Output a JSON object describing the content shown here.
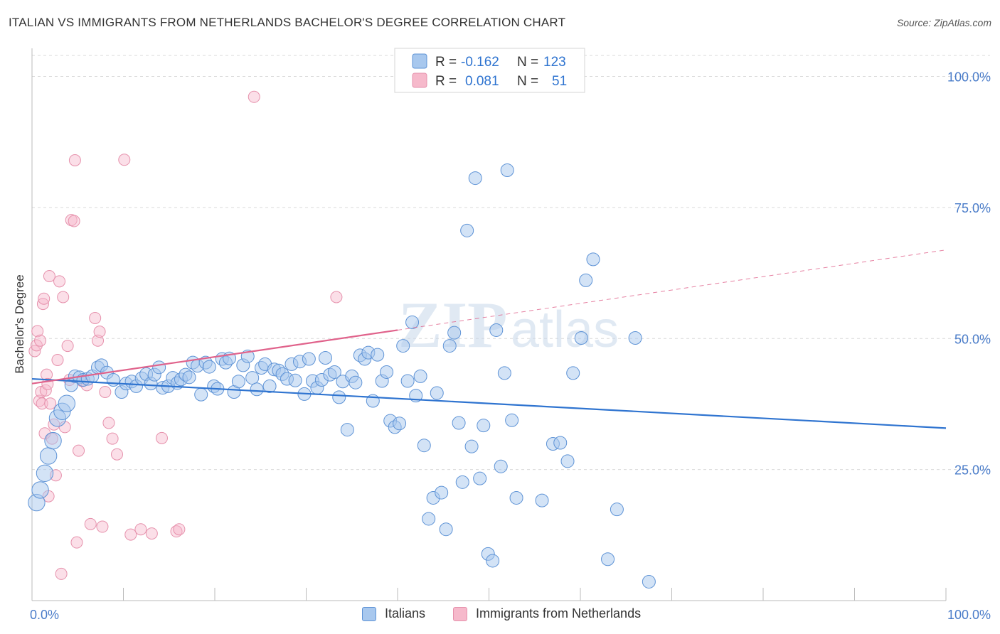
{
  "header": {
    "title": "ITALIAN VS IMMIGRANTS FROM NETHERLANDS BACHELOR'S DEGREE CORRELATION CHART",
    "source": "Source: ZipAtlas.com"
  },
  "watermark": {
    "zip": "ZIP",
    "atlas": "atlas"
  },
  "colors": {
    "blue_fill": "#a8c8ee",
    "blue_stroke": "#5e93d6",
    "blue_line": "#2f74d0",
    "pink_fill": "#f6b9cb",
    "pink_stroke": "#e691ac",
    "pink_line": "#e0628b",
    "axis_text": "#4a7cc9",
    "grid": "#d9d9d9"
  },
  "legend": {
    "rows": [
      {
        "r_label": "R =",
        "r_value": "-0.162",
        "n_label": "N =",
        "n_value": "123"
      },
      {
        "r_label": "R =",
        "r_value": "0.081",
        "n_label": "N =",
        "n_value": "51"
      }
    ],
    "bottom": [
      "Italians",
      "Immigrants from Netherlands"
    ]
  },
  "chart_data": {
    "type": "scatter",
    "title": "ITALIAN VS IMMIGRANTS FROM NETHERLANDS BACHELOR'S DEGREE CORRELATION CHART",
    "xlabel": "",
    "ylabel": "Bachelor's Degree",
    "xlim": [
      0,
      100
    ],
    "ylim": [
      0,
      104
    ],
    "x_tick_labels": [
      "0.0%",
      "100.0%"
    ],
    "y_tick_labels": [
      "25.0%",
      "50.0%",
      "75.0%",
      "100.0%"
    ],
    "y_ticks": [
      25,
      50,
      75,
      100
    ],
    "series": [
      {
        "name": "Italians",
        "color": "blue",
        "R": -0.162,
        "N": 123,
        "trend": {
          "x0": 0,
          "y0": 42.3,
          "x1": 100,
          "y1": 32.9
        },
        "points": [
          [
            0.5,
            18.7,
            1.3
          ],
          [
            0.9,
            21.1,
            1.3
          ],
          [
            1.4,
            24.3,
            1.3
          ],
          [
            1.8,
            27.6,
            1.3
          ],
          [
            2.3,
            30.5,
            1.3
          ],
          [
            2.8,
            34.8,
            1.3
          ],
          [
            3.3,
            36.1,
            1.3
          ],
          [
            3.8,
            37.6,
            1.3
          ],
          [
            4.3,
            41.1,
            1
          ],
          [
            4.7,
            42.8,
            1
          ],
          [
            5.2,
            42.6,
            1
          ],
          [
            5.6,
            42.1,
            1
          ],
          [
            6.1,
            42.3,
            1
          ],
          [
            6.6,
            42.8,
            1
          ],
          [
            7.2,
            44.5,
            1
          ],
          [
            7.6,
            44.9,
            1
          ],
          [
            8.2,
            43.5,
            1
          ],
          [
            8.9,
            42.1,
            1
          ],
          [
            9.8,
            39.8,
            1
          ],
          [
            10.3,
            41.4,
            1
          ],
          [
            10.9,
            41.8,
            1
          ],
          [
            11.4,
            40.9,
            1
          ],
          [
            12.0,
            42.4,
            1
          ],
          [
            12.5,
            43.2,
            1
          ],
          [
            13.0,
            41.4,
            1
          ],
          [
            13.4,
            43.1,
            1
          ],
          [
            13.9,
            44.5,
            1
          ],
          [
            14.3,
            40.6,
            1
          ],
          [
            14.9,
            40.9,
            1
          ],
          [
            15.4,
            42.5,
            1
          ],
          [
            15.9,
            41.5,
            1
          ],
          [
            16.3,
            42.2,
            1
          ],
          [
            16.8,
            43.1,
            1
          ],
          [
            17.2,
            42.6,
            1
          ],
          [
            17.6,
            45.4,
            1
          ],
          [
            18.1,
            44.8,
            1
          ],
          [
            18.5,
            39.3,
            1
          ],
          [
            19.0,
            45.4,
            1
          ],
          [
            19.4,
            44.6,
            1
          ],
          [
            19.9,
            40.9,
            1
          ],
          [
            20.3,
            40.4,
            1
          ],
          [
            20.8,
            46.1,
            1
          ],
          [
            21.2,
            45.4,
            1
          ],
          [
            21.6,
            46.2,
            1
          ],
          [
            22.1,
            39.8,
            1
          ],
          [
            22.6,
            41.8,
            1
          ],
          [
            23.1,
            44.9,
            1
          ],
          [
            23.6,
            46.6,
            1
          ],
          [
            24.1,
            42.5,
            1
          ],
          [
            24.6,
            40.3,
            1
          ],
          [
            25.1,
            44.4,
            1
          ],
          [
            25.5,
            45.1,
            1
          ],
          [
            26.0,
            40.9,
            1
          ],
          [
            26.5,
            44.1,
            1
          ],
          [
            27.0,
            43.9,
            1
          ],
          [
            27.4,
            43.2,
            1
          ],
          [
            27.9,
            42.3,
            1
          ],
          [
            28.4,
            45.1,
            1
          ],
          [
            28.8,
            42.0,
            1
          ],
          [
            29.3,
            45.6,
            1
          ],
          [
            29.8,
            39.4,
            1
          ],
          [
            30.3,
            46.1,
            1
          ],
          [
            30.7,
            41.9,
            1
          ],
          [
            31.2,
            40.6,
            1
          ],
          [
            31.7,
            42.1,
            1
          ],
          [
            32.1,
            46.3,
            1
          ],
          [
            32.6,
            43.1,
            1
          ],
          [
            33.1,
            43.6,
            1
          ],
          [
            33.6,
            38.8,
            1
          ],
          [
            34.0,
            41.8,
            1
          ],
          [
            34.5,
            32.6,
            1
          ],
          [
            35.0,
            42.8,
            1
          ],
          [
            35.4,
            41.6,
            1
          ],
          [
            35.9,
            46.8,
            1
          ],
          [
            36.4,
            46.1,
            1
          ],
          [
            36.8,
            47.3,
            1
          ],
          [
            37.3,
            38.1,
            1
          ],
          [
            37.8,
            46.9,
            1
          ],
          [
            38.3,
            41.9,
            1
          ],
          [
            38.8,
            43.6,
            1
          ],
          [
            39.2,
            34.3,
            1
          ],
          [
            39.7,
            33.1,
            1
          ],
          [
            40.2,
            33.8,
            1
          ],
          [
            40.6,
            48.6,
            1
          ],
          [
            41.1,
            41.9,
            1
          ],
          [
            41.6,
            53.1,
            1
          ],
          [
            42.0,
            39.1,
            1
          ],
          [
            42.5,
            42.8,
            1
          ],
          [
            42.9,
            29.6,
            1
          ],
          [
            43.4,
            15.6,
            1
          ],
          [
            43.9,
            19.6,
            1
          ],
          [
            44.3,
            39.6,
            1
          ],
          [
            44.8,
            20.6,
            1
          ],
          [
            45.3,
            13.6,
            1
          ],
          [
            45.7,
            48.6,
            1
          ],
          [
            46.2,
            51.1,
            1
          ],
          [
            46.7,
            33.9,
            1
          ],
          [
            47.1,
            22.6,
            1
          ],
          [
            47.6,
            70.6,
            1
          ],
          [
            48.1,
            29.4,
            1
          ],
          [
            48.5,
            80.6,
            1
          ],
          [
            49.0,
            23.3,
            1
          ],
          [
            49.4,
            33.4,
            1
          ],
          [
            49.9,
            8.9,
            1
          ],
          [
            50.4,
            7.6,
            1
          ],
          [
            50.8,
            51.6,
            1
          ],
          [
            51.3,
            25.6,
            1
          ],
          [
            51.7,
            43.4,
            1
          ],
          [
            52.0,
            82.1,
            1
          ],
          [
            52.5,
            34.4,
            1
          ],
          [
            53.0,
            19.6,
            1
          ],
          [
            55.8,
            19.1,
            1
          ],
          [
            57.0,
            29.9,
            1
          ],
          [
            57.8,
            30.1,
            1
          ],
          [
            58.6,
            26.6,
            1
          ],
          [
            59.2,
            43.4,
            1
          ],
          [
            60.1,
            50.1,
            1
          ],
          [
            60.6,
            61.1,
            1
          ],
          [
            61.4,
            65.1,
            1
          ],
          [
            63.0,
            7.9,
            1
          ],
          [
            64.0,
            17.4,
            1
          ],
          [
            67.5,
            3.6,
            1
          ],
          [
            66.0,
            50.1,
            1
          ]
        ]
      },
      {
        "name": "Immigrants from Netherlands",
        "color": "pink",
        "R": 0.081,
        "N": 51,
        "trend_solid": {
          "x0": 0,
          "y0": 41.4,
          "x1": 40,
          "y1": 51.6
        },
        "trend_dashed": {
          "x0": 40,
          "y0": 51.6,
          "x1": 100,
          "y1": 66.9
        },
        "points": [
          [
            0.3,
            47.6
          ],
          [
            0.5,
            48.7
          ],
          [
            0.6,
            51.4
          ],
          [
            0.8,
            38.1
          ],
          [
            0.9,
            49.6
          ],
          [
            1.0,
            39.8
          ],
          [
            1.1,
            37.6
          ],
          [
            1.2,
            56.6
          ],
          [
            1.3,
            57.6
          ],
          [
            1.4,
            31.9
          ],
          [
            1.5,
            40.1
          ],
          [
            1.6,
            43.1
          ],
          [
            1.7,
            41.3
          ],
          [
            1.8,
            19.9
          ],
          [
            1.9,
            61.9
          ],
          [
            2.0,
            37.6
          ],
          [
            2.2,
            30.9
          ],
          [
            2.4,
            33.6
          ],
          [
            2.6,
            23.9
          ],
          [
            2.8,
            45.9
          ],
          [
            3.0,
            60.9
          ],
          [
            3.2,
            5.1
          ],
          [
            3.4,
            57.9
          ],
          [
            3.6,
            33.1
          ],
          [
            3.9,
            48.6
          ],
          [
            4.1,
            42.1
          ],
          [
            4.3,
            72.6
          ],
          [
            4.6,
            72.4
          ],
          [
            4.9,
            11.1
          ],
          [
            5.1,
            28.6
          ],
          [
            5.5,
            41.9
          ],
          [
            6.0,
            41.1
          ],
          [
            6.4,
            14.6
          ],
          [
            6.9,
            53.9
          ],
          [
            7.2,
            49.6
          ],
          [
            7.4,
            51.3
          ],
          [
            7.7,
            14.1
          ],
          [
            8.0,
            39.8
          ],
          [
            8.4,
            33.9
          ],
          [
            8.8,
            30.9
          ],
          [
            9.3,
            27.9
          ],
          [
            10.1,
            84.1
          ],
          [
            10.8,
            12.6
          ],
          [
            11.9,
            13.6
          ],
          [
            13.1,
            12.8
          ],
          [
            14.2,
            31.0
          ],
          [
            15.8,
            13.2
          ],
          [
            16.1,
            13.6
          ],
          [
            24.3,
            96.1
          ],
          [
            4.7,
            84.0
          ],
          [
            33.3,
            57.9
          ]
        ]
      }
    ]
  }
}
